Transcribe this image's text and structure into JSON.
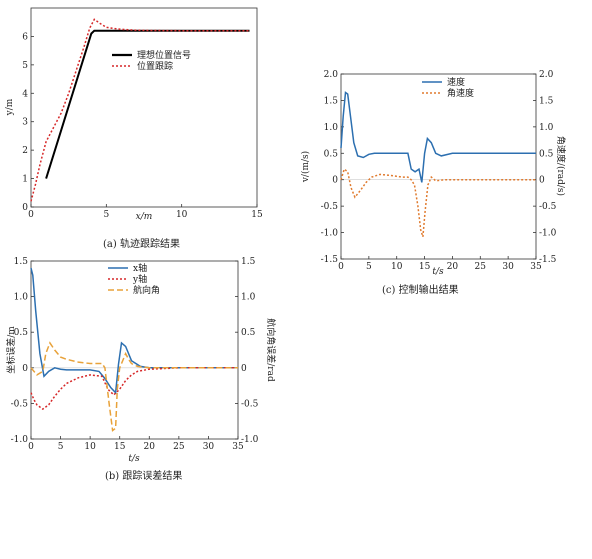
{
  "chart_data": [
    {
      "id": "a",
      "type": "line",
      "caption": "(a) 轨迹跟踪结果",
      "xlabel": "x/m",
      "ylabel": "y/m",
      "xlim": [
        0,
        15
      ],
      "ylim": [
        0,
        7
      ],
      "xticks": [
        0,
        5,
        10,
        15
      ],
      "xtick_labels": [
        "0",
        "5",
        "10",
        "15"
      ],
      "yticks": [
        0,
        1,
        2,
        3,
        4,
        5,
        6
      ],
      "grid": false,
      "legend": "top-center",
      "series": [
        {
          "name": "理想位置信号",
          "color": "#000000",
          "dash": "",
          "x": [
            1.0,
            4.0,
            4.2,
            6,
            8,
            10,
            12,
            14.5
          ],
          "y": [
            1.0,
            6.1,
            6.2,
            6.2,
            6.2,
            6.2,
            6.2,
            6.2
          ]
        },
        {
          "name": "位置跟踪",
          "color": "#d62728",
          "dash": "2,2",
          "x": [
            0,
            0.3,
            0.6,
            1.0,
            1.5,
            2.0,
            2.5,
            3.0,
            3.5,
            3.9,
            4.2,
            4.6,
            5.0,
            5.5,
            6,
            7,
            8,
            10,
            12,
            14.5
          ],
          "y": [
            0.2,
            0.8,
            1.5,
            2.3,
            2.8,
            3.3,
            4.0,
            4.8,
            5.6,
            6.3,
            6.6,
            6.45,
            6.32,
            6.28,
            6.25,
            6.22,
            6.21,
            6.2,
            6.2,
            6.2
          ]
        }
      ]
    },
    {
      "id": "b",
      "type": "line",
      "caption": "(b) 跟踪误差结果",
      "xlabel": "t/s",
      "ylabel": "坐标误差/m",
      "ylabel_right": "航向角误差/rad",
      "xlim": [
        0,
        35
      ],
      "ylim": [
        -1.0,
        1.5
      ],
      "ylim_right": [
        -1.0,
        1.5
      ],
      "xticks": [
        0,
        5,
        10,
        15,
        20,
        25,
        30,
        35
      ],
      "yticks": [
        -1.0,
        -0.5,
        0,
        0.5,
        1.0,
        1.5
      ],
      "ytick_labels": [
        "-1.0",
        "-0.5",
        "0",
        "0.5",
        "1.0",
        "1.5"
      ],
      "yticks_right": [
        -1.0,
        -0.5,
        0,
        0.5,
        1.0,
        1.5
      ],
      "ytick_labels_right": [
        "-1.0",
        "-0.5",
        "0",
        "0.5",
        "1.0",
        "1.5"
      ],
      "grid": false,
      "legend": "top-center",
      "series": [
        {
          "name": "x轴",
          "color": "#2c6fb0",
          "dash": "",
          "axis": "left",
          "x": [
            0,
            0.3,
            0.8,
            1.5,
            2.2,
            3,
            4,
            5,
            6,
            8,
            10,
            11.5,
            12.5,
            13.5,
            14.3,
            14.8,
            15.3,
            16,
            17,
            18.5,
            20,
            25,
            30,
            35
          ],
          "y": [
            1.4,
            1.3,
            0.8,
            0.2,
            -0.12,
            -0.05,
            0.0,
            -0.02,
            -0.03,
            -0.03,
            -0.03,
            -0.05,
            -0.15,
            -0.28,
            -0.35,
            0.05,
            0.35,
            0.3,
            0.1,
            0.02,
            0.0,
            0.0,
            0.0,
            0.0
          ]
        },
        {
          "name": "y轴",
          "color": "#d62728",
          "dash": "2,2",
          "axis": "left",
          "x": [
            0,
            0.5,
            1,
            2,
            3,
            4,
            5,
            6,
            8,
            10,
            12,
            13,
            14,
            15,
            16,
            17,
            18,
            20,
            25,
            30,
            35
          ],
          "y": [
            -0.35,
            -0.45,
            -0.52,
            -0.58,
            -0.52,
            -0.4,
            -0.3,
            -0.22,
            -0.14,
            -0.1,
            -0.12,
            -0.3,
            -0.38,
            -0.3,
            -0.18,
            -0.1,
            -0.05,
            -0.02,
            0.0,
            0.0,
            0.0
          ]
        },
        {
          "name": "航向角",
          "color": "#e8a23a",
          "dash": "6,3",
          "axis": "right",
          "x": [
            0,
            1,
            2,
            2.5,
            3.2,
            4,
            5,
            6,
            8,
            10,
            12,
            12.5,
            13.2,
            13.8,
            14.3,
            14.6,
            15,
            15.5,
            16,
            16.5,
            17,
            18,
            20,
            25,
            30,
            35
          ],
          "y": [
            0.0,
            -0.1,
            -0.05,
            0.2,
            0.35,
            0.25,
            0.15,
            0.12,
            0.08,
            0.06,
            0.06,
            0.0,
            -0.5,
            -0.88,
            -0.85,
            -0.3,
            0.0,
            0.1,
            0.2,
            0.12,
            0.06,
            0.02,
            0.0,
            0.0,
            0.0,
            0.0
          ]
        }
      ]
    },
    {
      "id": "c",
      "type": "line",
      "caption": "(c) 控制输出结果",
      "xlabel": "t/s",
      "ylabel": "v/(m/s)",
      "ylabel_right": "角速度/(rad/s)",
      "xlim": [
        0,
        35
      ],
      "ylim": [
        -1.5,
        2.0
      ],
      "ylim_right": [
        -1.5,
        2.0
      ],
      "xticks": [
        0,
        5,
        10,
        15,
        20,
        25,
        30,
        35
      ],
      "yticks": [
        -1.5,
        -1.0,
        -0.5,
        0,
        0.5,
        1.0,
        1.5,
        2.0
      ],
      "ytick_labels": [
        "-1.5",
        "-1.0",
        "-0.5",
        "0",
        "0.5",
        "1.0",
        "1.5",
        "2.0"
      ],
      "yticks_right": [
        -1.5,
        -1.0,
        -0.5,
        0,
        0.5,
        1.0,
        1.5,
        2.0
      ],
      "ytick_labels_right": [
        "-1.5",
        "-1.0",
        "-0.5",
        "0",
        "0.5",
        "1.0",
        "1.5",
        "2.0"
      ],
      "grid": false,
      "legend": "top-center",
      "series": [
        {
          "name": "速度",
          "color": "#2c6fb0",
          "dash": "",
          "axis": "left",
          "x": [
            0,
            0.4,
            0.8,
            1.2,
            1.7,
            2.3,
            3,
            4,
            5,
            6,
            8,
            10,
            12,
            12.6,
            13.3,
            14,
            14.5,
            15,
            15.5,
            16.2,
            17,
            18,
            20,
            25,
            30,
            35
          ],
          "y": [
            0.6,
            1.2,
            1.65,
            1.62,
            1.2,
            0.7,
            0.45,
            0.42,
            0.48,
            0.5,
            0.5,
            0.5,
            0.5,
            0.2,
            0.15,
            0.2,
            -0.05,
            0.5,
            0.78,
            0.7,
            0.5,
            0.45,
            0.5,
            0.5,
            0.5,
            0.5
          ]
        },
        {
          "name": "角速度",
          "color": "#e07a2e",
          "dash": "2,2",
          "axis": "right",
          "x": [
            0,
            0.6,
            1.2,
            1.8,
            2.5,
            3.5,
            4.5,
            5.5,
            7,
            9,
            11,
            12,
            12.6,
            13.2,
            13.8,
            14.3,
            14.7,
            15.1,
            15.6,
            16.2,
            17,
            18.5,
            20,
            25,
            30,
            35
          ],
          "y": [
            0.0,
            0.2,
            0.15,
            -0.15,
            -0.33,
            -0.2,
            -0.05,
            0.05,
            0.1,
            0.08,
            0.05,
            0.05,
            0.0,
            -0.1,
            -0.5,
            -0.95,
            -1.08,
            -0.6,
            -0.1,
            0.05,
            -0.02,
            0.0,
            0.0,
            0.0,
            0.0,
            0.0
          ]
        }
      ]
    }
  ]
}
